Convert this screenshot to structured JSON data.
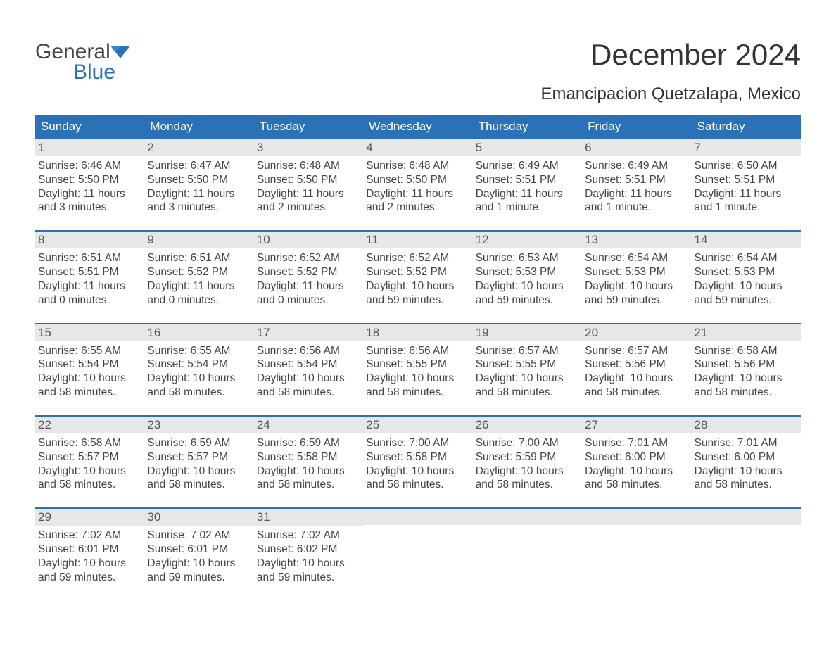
{
  "logo": {
    "word1": "General",
    "word2": "Blue"
  },
  "colors": {
    "brand_blue": "#2a71b8",
    "header_bg": "#2a71b8",
    "header_text": "#ffffff",
    "daynum_bg": "#e7e7e7",
    "daynum_text": "#555555",
    "body_text": "#444444",
    "page_bg": "#ffffff",
    "week_border": "#2a71b8"
  },
  "title": "December 2024",
  "location": "Emancipacion Quetzalapa, Mexico",
  "day_headers": [
    "Sunday",
    "Monday",
    "Tuesday",
    "Wednesday",
    "Thursday",
    "Friday",
    "Saturday"
  ],
  "calendar": {
    "type": "table",
    "columns": 7,
    "rows": 5,
    "cell_fields": [
      "num",
      "sunrise",
      "sunset",
      "daylight1",
      "daylight2"
    ],
    "weeks": [
      [
        {
          "num": "1",
          "sunrise": "Sunrise: 6:46 AM",
          "sunset": "Sunset: 5:50 PM",
          "daylight1": "Daylight: 11 hours",
          "daylight2": "and 3 minutes."
        },
        {
          "num": "2",
          "sunrise": "Sunrise: 6:47 AM",
          "sunset": "Sunset: 5:50 PM",
          "daylight1": "Daylight: 11 hours",
          "daylight2": "and 3 minutes."
        },
        {
          "num": "3",
          "sunrise": "Sunrise: 6:48 AM",
          "sunset": "Sunset: 5:50 PM",
          "daylight1": "Daylight: 11 hours",
          "daylight2": "and 2 minutes."
        },
        {
          "num": "4",
          "sunrise": "Sunrise: 6:48 AM",
          "sunset": "Sunset: 5:50 PM",
          "daylight1": "Daylight: 11 hours",
          "daylight2": "and 2 minutes."
        },
        {
          "num": "5",
          "sunrise": "Sunrise: 6:49 AM",
          "sunset": "Sunset: 5:51 PM",
          "daylight1": "Daylight: 11 hours",
          "daylight2": "and 1 minute."
        },
        {
          "num": "6",
          "sunrise": "Sunrise: 6:49 AM",
          "sunset": "Sunset: 5:51 PM",
          "daylight1": "Daylight: 11 hours",
          "daylight2": "and 1 minute."
        },
        {
          "num": "7",
          "sunrise": "Sunrise: 6:50 AM",
          "sunset": "Sunset: 5:51 PM",
          "daylight1": "Daylight: 11 hours",
          "daylight2": "and 1 minute."
        }
      ],
      [
        {
          "num": "8",
          "sunrise": "Sunrise: 6:51 AM",
          "sunset": "Sunset: 5:51 PM",
          "daylight1": "Daylight: 11 hours",
          "daylight2": "and 0 minutes."
        },
        {
          "num": "9",
          "sunrise": "Sunrise: 6:51 AM",
          "sunset": "Sunset: 5:52 PM",
          "daylight1": "Daylight: 11 hours",
          "daylight2": "and 0 minutes."
        },
        {
          "num": "10",
          "sunrise": "Sunrise: 6:52 AM",
          "sunset": "Sunset: 5:52 PM",
          "daylight1": "Daylight: 11 hours",
          "daylight2": "and 0 minutes."
        },
        {
          "num": "11",
          "sunrise": "Sunrise: 6:52 AM",
          "sunset": "Sunset: 5:52 PM",
          "daylight1": "Daylight: 10 hours",
          "daylight2": "and 59 minutes."
        },
        {
          "num": "12",
          "sunrise": "Sunrise: 6:53 AM",
          "sunset": "Sunset: 5:53 PM",
          "daylight1": "Daylight: 10 hours",
          "daylight2": "and 59 minutes."
        },
        {
          "num": "13",
          "sunrise": "Sunrise: 6:54 AM",
          "sunset": "Sunset: 5:53 PM",
          "daylight1": "Daylight: 10 hours",
          "daylight2": "and 59 minutes."
        },
        {
          "num": "14",
          "sunrise": "Sunrise: 6:54 AM",
          "sunset": "Sunset: 5:53 PM",
          "daylight1": "Daylight: 10 hours",
          "daylight2": "and 59 minutes."
        }
      ],
      [
        {
          "num": "15",
          "sunrise": "Sunrise: 6:55 AM",
          "sunset": "Sunset: 5:54 PM",
          "daylight1": "Daylight: 10 hours",
          "daylight2": "and 58 minutes."
        },
        {
          "num": "16",
          "sunrise": "Sunrise: 6:55 AM",
          "sunset": "Sunset: 5:54 PM",
          "daylight1": "Daylight: 10 hours",
          "daylight2": "and 58 minutes."
        },
        {
          "num": "17",
          "sunrise": "Sunrise: 6:56 AM",
          "sunset": "Sunset: 5:54 PM",
          "daylight1": "Daylight: 10 hours",
          "daylight2": "and 58 minutes."
        },
        {
          "num": "18",
          "sunrise": "Sunrise: 6:56 AM",
          "sunset": "Sunset: 5:55 PM",
          "daylight1": "Daylight: 10 hours",
          "daylight2": "and 58 minutes."
        },
        {
          "num": "19",
          "sunrise": "Sunrise: 6:57 AM",
          "sunset": "Sunset: 5:55 PM",
          "daylight1": "Daylight: 10 hours",
          "daylight2": "and 58 minutes."
        },
        {
          "num": "20",
          "sunrise": "Sunrise: 6:57 AM",
          "sunset": "Sunset: 5:56 PM",
          "daylight1": "Daylight: 10 hours",
          "daylight2": "and 58 minutes."
        },
        {
          "num": "21",
          "sunrise": "Sunrise: 6:58 AM",
          "sunset": "Sunset: 5:56 PM",
          "daylight1": "Daylight: 10 hours",
          "daylight2": "and 58 minutes."
        }
      ],
      [
        {
          "num": "22",
          "sunrise": "Sunrise: 6:58 AM",
          "sunset": "Sunset: 5:57 PM",
          "daylight1": "Daylight: 10 hours",
          "daylight2": "and 58 minutes."
        },
        {
          "num": "23",
          "sunrise": "Sunrise: 6:59 AM",
          "sunset": "Sunset: 5:57 PM",
          "daylight1": "Daylight: 10 hours",
          "daylight2": "and 58 minutes."
        },
        {
          "num": "24",
          "sunrise": "Sunrise: 6:59 AM",
          "sunset": "Sunset: 5:58 PM",
          "daylight1": "Daylight: 10 hours",
          "daylight2": "and 58 minutes."
        },
        {
          "num": "25",
          "sunrise": "Sunrise: 7:00 AM",
          "sunset": "Sunset: 5:58 PM",
          "daylight1": "Daylight: 10 hours",
          "daylight2": "and 58 minutes."
        },
        {
          "num": "26",
          "sunrise": "Sunrise: 7:00 AM",
          "sunset": "Sunset: 5:59 PM",
          "daylight1": "Daylight: 10 hours",
          "daylight2": "and 58 minutes."
        },
        {
          "num": "27",
          "sunrise": "Sunrise: 7:01 AM",
          "sunset": "Sunset: 6:00 PM",
          "daylight1": "Daylight: 10 hours",
          "daylight2": "and 58 minutes."
        },
        {
          "num": "28",
          "sunrise": "Sunrise: 7:01 AM",
          "sunset": "Sunset: 6:00 PM",
          "daylight1": "Daylight: 10 hours",
          "daylight2": "and 58 minutes."
        }
      ],
      [
        {
          "num": "29",
          "sunrise": "Sunrise: 7:02 AM",
          "sunset": "Sunset: 6:01 PM",
          "daylight1": "Daylight: 10 hours",
          "daylight2": "and 59 minutes."
        },
        {
          "num": "30",
          "sunrise": "Sunrise: 7:02 AM",
          "sunset": "Sunset: 6:01 PM",
          "daylight1": "Daylight: 10 hours",
          "daylight2": "and 59 minutes."
        },
        {
          "num": "31",
          "sunrise": "Sunrise: 7:02 AM",
          "sunset": "Sunset: 6:02 PM",
          "daylight1": "Daylight: 10 hours",
          "daylight2": "and 59 minutes."
        },
        {
          "empty": true
        },
        {
          "empty": true
        },
        {
          "empty": true
        },
        {
          "empty": true
        }
      ]
    ]
  }
}
